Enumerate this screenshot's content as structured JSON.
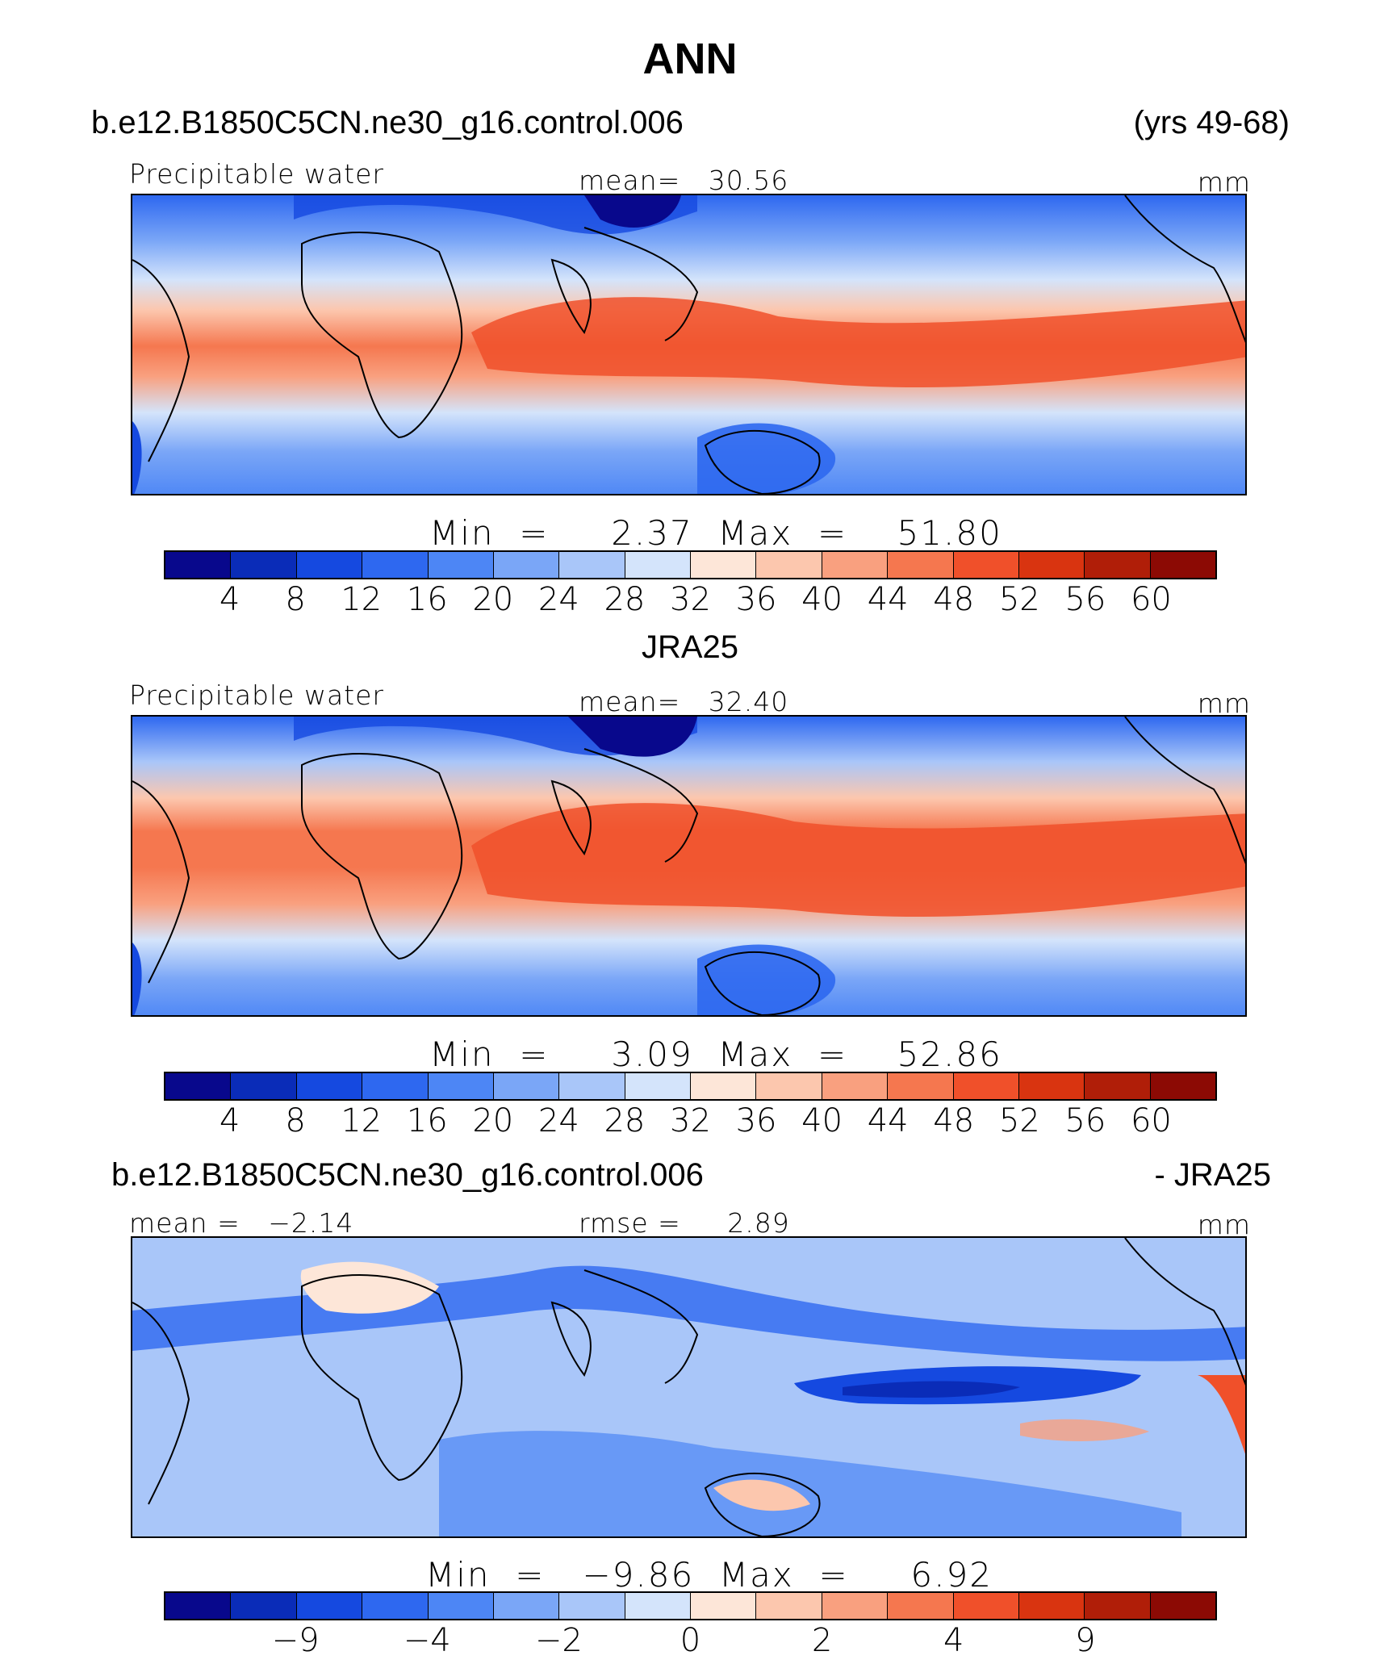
{
  "chart_data": [
    {
      "type": "heatmap",
      "title": "ANN",
      "case_name": "b.e12.B1850C5CN.ne30_g16.control.006",
      "years": "(yrs 49-68)",
      "variable": "Precipitable water",
      "mean_label": "mean=",
      "mean_value": "30.56",
      "units": "mm",
      "min_label": "Min",
      "max_label": "Max",
      "min_value": "2.37",
      "max_value": "51.80",
      "colorbar_ticks": [
        "4",
        "8",
        "12",
        "16",
        "20",
        "24",
        "28",
        "32",
        "36",
        "40",
        "44",
        "48",
        "52",
        "56",
        "60"
      ],
      "colorbar_levels": [
        4,
        8,
        12,
        16,
        20,
        24,
        28,
        32,
        36,
        40,
        44,
        48,
        52,
        56,
        60
      ]
    },
    {
      "type": "heatmap",
      "title": "JRA25",
      "variable": "Precipitable water",
      "mean_label": "mean=",
      "mean_value": "32.40",
      "units": "mm",
      "min_label": "Min",
      "max_label": "Max",
      "min_value": "3.09",
      "max_value": "52.86",
      "colorbar_ticks": [
        "4",
        "8",
        "12",
        "16",
        "20",
        "24",
        "28",
        "32",
        "36",
        "40",
        "44",
        "48",
        "52",
        "56",
        "60"
      ],
      "colorbar_levels": [
        4,
        8,
        12,
        16,
        20,
        24,
        28,
        32,
        36,
        40,
        44,
        48,
        52,
        56,
        60
      ]
    },
    {
      "type": "heatmap",
      "title": "b.e12.B1850C5CN.ne30_g16.control.006",
      "title_right": "- JRA25",
      "mean_label": "mean =",
      "mean_value": "−2.14",
      "rmse_label": "rmse =",
      "rmse_value": "2.89",
      "units": "mm",
      "min_label": "Min",
      "max_label": "Max",
      "min_value": "−9.86",
      "max_value": "6.92",
      "colorbar_ticks": [
        "−9",
        "−4",
        "−2",
        "0",
        "2",
        "4",
        "9"
      ],
      "colorbar_levels": [
        -9,
        -4,
        -2,
        0,
        2,
        4,
        9
      ]
    }
  ],
  "colors": {
    "palette": [
      "#08088c",
      "#0a2cb8",
      "#1549e0",
      "#2e68f0",
      "#4d86f5",
      "#7aa6f7",
      "#a9c6f9",
      "#d4e4fb",
      "#fde6d8",
      "#fcc7ae",
      "#f9a07f",
      "#f5774f",
      "#f0502a",
      "#d93410",
      "#b01e08",
      "#8c0a04"
    ]
  }
}
